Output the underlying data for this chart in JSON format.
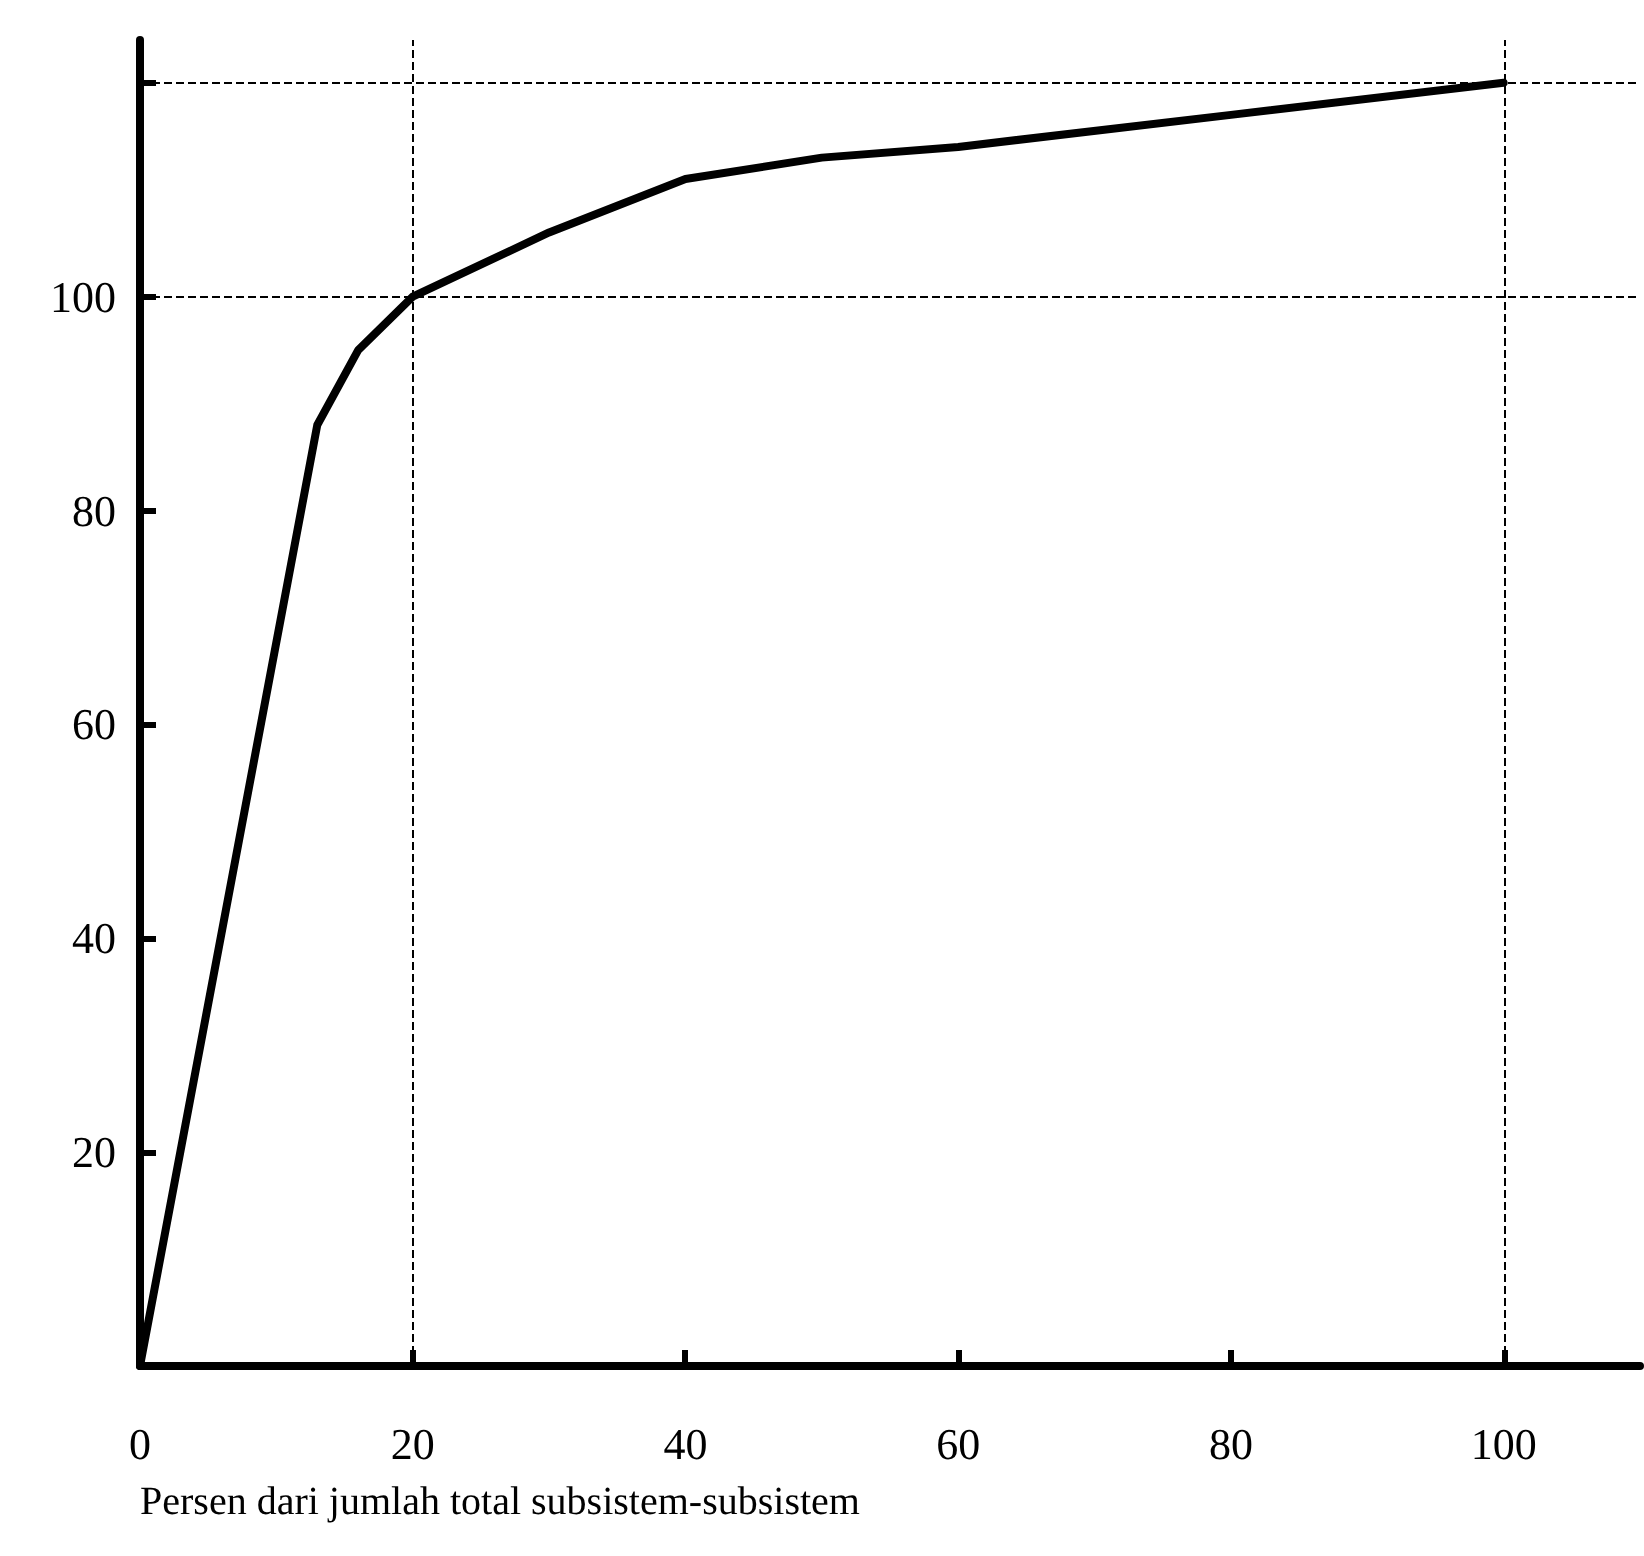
{
  "chart_data": {
    "type": "line",
    "xlabel": "Persen dari jumlah total subsistem-subsistem",
    "x": [
      0,
      13,
      16,
      20,
      30,
      40,
      50,
      60,
      80,
      100
    ],
    "series": [
      {
        "color": "#000000",
        "values": [
          0,
          88,
          95,
          100,
          106,
          111,
          113,
          114,
          117,
          120
        ]
      }
    ],
    "xlim": [
      0,
      110
    ],
    "xticks": [
      0,
      20,
      40,
      60,
      80,
      100
    ],
    "ylim": [
      0,
      124
    ],
    "yticks": [
      20,
      40,
      60,
      80,
      100,
      {
        "value": 120,
        "label": null
      }
    ],
    "ref_lines": [
      {
        "axis": "y",
        "value": 100,
        "line_style": "dashed"
      },
      {
        "axis": "y",
        "value": 120,
        "line_style": "dashed"
      },
      {
        "axis": "x",
        "value": 20,
        "line_style": "dashed"
      },
      {
        "axis": "x",
        "value": 100,
        "line_style": "dashed"
      }
    ],
    "grid": false,
    "marker": "none",
    "line_style": "solid"
  }
}
